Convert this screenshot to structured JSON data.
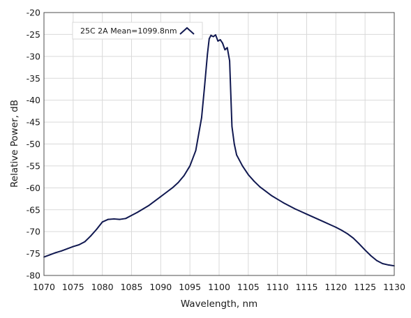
{
  "chart_data": {
    "type": "line",
    "title": "",
    "xlabel": "Wavelength, nm",
    "ylabel": "Relative Power, dB",
    "xlim": [
      1070,
      1130
    ],
    "ylim": [
      -80,
      -20
    ],
    "xticks": [
      1070,
      1075,
      1080,
      1085,
      1090,
      1095,
      1100,
      1105,
      1110,
      1115,
      1120,
      1125,
      1130
    ],
    "yticks": [
      -20,
      -25,
      -30,
      -35,
      -40,
      -45,
      -50,
      -55,
      -60,
      -65,
      -70,
      -75,
      -80
    ],
    "grid": true,
    "legend_position": "top-left",
    "series": [
      {
        "name": "25C 2A Mean=1099.8nm",
        "color": "#101850",
        "x": [
          1070,
          1071,
          1072,
          1073,
          1074,
          1075,
          1076,
          1077,
          1078,
          1079,
          1080,
          1081,
          1082,
          1083,
          1084,
          1085,
          1086,
          1087,
          1088,
          1089,
          1090,
          1091,
          1092,
          1093,
          1094,
          1095,
          1096,
          1097,
          1097.5,
          1098,
          1098.3,
          1098.6,
          1099,
          1099.4,
          1099.8,
          1100.2,
          1100.6,
          1101,
          1101.4,
          1101.8,
          1102.2,
          1102.6,
          1103,
          1104,
          1105,
          1106,
          1107,
          1108,
          1109,
          1110,
          1111,
          1112,
          1113,
          1114,
          1115,
          1116,
          1117,
          1118,
          1119,
          1120,
          1121,
          1122,
          1123,
          1124,
          1125,
          1126,
          1127,
          1128,
          1129,
          1130
        ],
        "y": [
          -75.8,
          -75.3,
          -74.8,
          -74.4,
          -73.9,
          -73.4,
          -73.0,
          -72.3,
          -71.0,
          -69.5,
          -67.8,
          -67.2,
          -67.1,
          -67.2,
          -67.0,
          -66.3,
          -65.6,
          -64.8,
          -64.0,
          -63.0,
          -62.0,
          -61.0,
          -60.0,
          -58.8,
          -57.2,
          -55.0,
          -51.5,
          -44.0,
          -37.0,
          -29.5,
          -26.0,
          -25.2,
          -25.5,
          -25.1,
          -26.5,
          -26.2,
          -27.0,
          -28.5,
          -28.0,
          -31.0,
          -46.0,
          -50.0,
          -52.5,
          -55.0,
          -57.0,
          -58.5,
          -59.8,
          -60.8,
          -61.8,
          -62.6,
          -63.4,
          -64.1,
          -64.8,
          -65.4,
          -66.0,
          -66.6,
          -67.2,
          -67.8,
          -68.4,
          -69.0,
          -69.7,
          -70.5,
          -71.5,
          -72.8,
          -74.2,
          -75.5,
          -76.6,
          -77.3,
          -77.6,
          -77.8
        ]
      }
    ]
  }
}
